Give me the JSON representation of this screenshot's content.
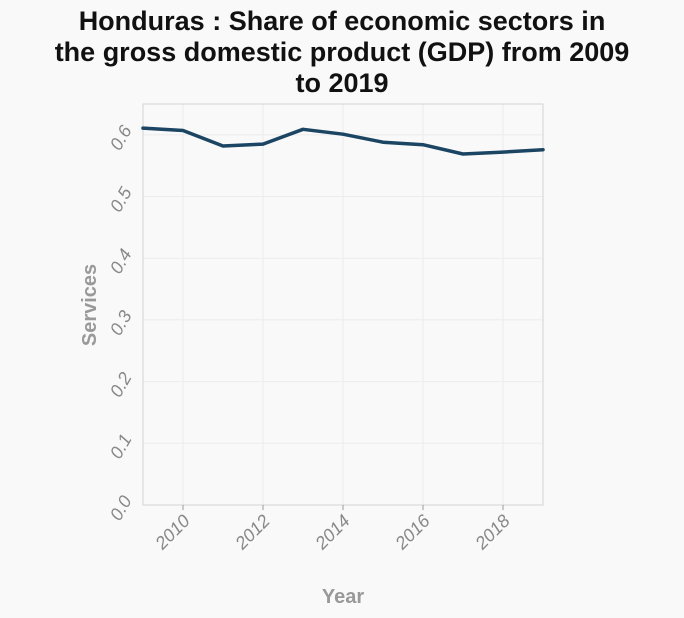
{
  "chart_data": {
    "type": "line",
    "title_lines": [
      "Honduras : Share of economic sectors in",
      "the gross domestic product (GDP) from 2009",
      "to 2019"
    ],
    "xlabel": "Year",
    "ylabel": "Services",
    "xlim": [
      2009,
      2019
    ],
    "ylim": [
      0.0,
      0.65
    ],
    "x_ticks": [
      "2010",
      "2012",
      "2014",
      "2016",
      "2018"
    ],
    "y_ticks": [
      "0.0",
      "0.1",
      "0.2",
      "0.3",
      "0.4",
      "0.5",
      "0.6"
    ],
    "grid": true,
    "series": [
      {
        "color": "#1b4563",
        "x": [
          2009,
          2010,
          2011,
          2012,
          2013,
          2014,
          2015,
          2016,
          2017,
          2018,
          2019
        ],
        "values": [
          0.611,
          0.607,
          0.582,
          0.585,
          0.609,
          0.601,
          0.588,
          0.584,
          0.569,
          0.572,
          0.576
        ]
      }
    ]
  }
}
